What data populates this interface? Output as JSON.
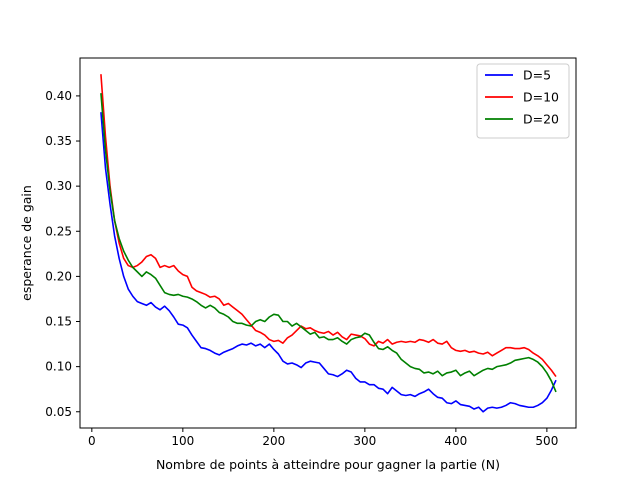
{
  "chart_data": {
    "type": "line",
    "title": "",
    "xlabel": "Nombre de points à atteindre pour gagner la partie (N)",
    "ylabel": "esperance de gain",
    "xlim": [
      -13,
      532
    ],
    "ylim": [
      0.032,
      0.442
    ],
    "xticks": [
      0,
      100,
      200,
      300,
      400,
      500
    ],
    "xtick_labels": [
      "0",
      "100",
      "200",
      "300",
      "400",
      "500"
    ],
    "yticks": [
      0.05,
      0.1,
      0.15,
      0.2,
      0.25,
      0.3,
      0.35,
      0.4
    ],
    "ytick_labels": [
      "0.05",
      "0.10",
      "0.15",
      "0.20",
      "0.25",
      "0.30",
      "0.35",
      "0.40"
    ],
    "grid": false,
    "legend_position": "top-right",
    "series": [
      {
        "name": "D=5",
        "color": "#0000ff",
        "x": [
          10,
          15,
          20,
          25,
          30,
          35,
          40,
          45,
          50,
          55,
          60,
          65,
          70,
          75,
          80,
          85,
          90,
          95,
          100,
          105,
          110,
          115,
          120,
          125,
          130,
          135,
          140,
          145,
          150,
          155,
          160,
          165,
          170,
          175,
          180,
          185,
          190,
          195,
          200,
          205,
          210,
          215,
          220,
          225,
          230,
          235,
          240,
          245,
          250,
          255,
          260,
          265,
          270,
          275,
          280,
          285,
          290,
          295,
          300,
          305,
          310,
          315,
          320,
          325,
          330,
          335,
          340,
          345,
          350,
          355,
          360,
          365,
          370,
          375,
          380,
          385,
          390,
          395,
          400,
          405,
          410,
          415,
          420,
          425,
          430,
          435,
          440,
          445,
          450,
          455,
          460,
          465,
          470,
          475,
          480,
          485,
          490,
          495,
          500,
          505,
          510
        ],
        "y": [
          0.382,
          0.32,
          0.28,
          0.245,
          0.22,
          0.2,
          0.186,
          0.178,
          0.172,
          0.17,
          0.168,
          0.171,
          0.166,
          0.163,
          0.167,
          0.162,
          0.155,
          0.147,
          0.146,
          0.143,
          0.135,
          0.128,
          0.121,
          0.12,
          0.118,
          0.115,
          0.113,
          0.116,
          0.118,
          0.12,
          0.123,
          0.125,
          0.124,
          0.126,
          0.123,
          0.125,
          0.121,
          0.125,
          0.119,
          0.114,
          0.106,
          0.103,
          0.104,
          0.102,
          0.099,
          0.104,
          0.106,
          0.105,
          0.104,
          0.098,
          0.092,
          0.091,
          0.089,
          0.092,
          0.096,
          0.094,
          0.087,
          0.083,
          0.083,
          0.08,
          0.08,
          0.076,
          0.075,
          0.07,
          0.077,
          0.073,
          0.069,
          0.068,
          0.069,
          0.067,
          0.07,
          0.072,
          0.075,
          0.07,
          0.066,
          0.065,
          0.06,
          0.059,
          0.062,
          0.058,
          0.057,
          0.056,
          0.053,
          0.055,
          0.05,
          0.054,
          0.055,
          0.054,
          0.055,
          0.057,
          0.06,
          0.059,
          0.057,
          0.056,
          0.055,
          0.055,
          0.057,
          0.06,
          0.065,
          0.074,
          0.085
        ]
      },
      {
        "name": "D=10",
        "color": "#ff0000",
        "x": [
          10,
          15,
          20,
          25,
          30,
          35,
          40,
          45,
          50,
          55,
          60,
          65,
          70,
          75,
          80,
          85,
          90,
          95,
          100,
          105,
          110,
          115,
          120,
          125,
          130,
          135,
          140,
          145,
          150,
          155,
          160,
          165,
          170,
          175,
          180,
          185,
          190,
          195,
          200,
          205,
          210,
          215,
          220,
          225,
          230,
          235,
          240,
          245,
          250,
          255,
          260,
          265,
          270,
          275,
          280,
          285,
          290,
          295,
          300,
          305,
          310,
          315,
          320,
          325,
          330,
          335,
          340,
          345,
          350,
          355,
          360,
          365,
          370,
          375,
          380,
          385,
          390,
          395,
          400,
          405,
          410,
          415,
          420,
          425,
          430,
          435,
          440,
          445,
          450,
          455,
          460,
          465,
          470,
          475,
          480,
          485,
          490,
          495,
          500,
          505,
          510
        ],
        "y": [
          0.424,
          0.355,
          0.3,
          0.262,
          0.237,
          0.22,
          0.212,
          0.21,
          0.212,
          0.216,
          0.222,
          0.224,
          0.22,
          0.21,
          0.212,
          0.21,
          0.212,
          0.206,
          0.202,
          0.2,
          0.188,
          0.184,
          0.182,
          0.18,
          0.177,
          0.178,
          0.175,
          0.168,
          0.17,
          0.166,
          0.162,
          0.158,
          0.152,
          0.146,
          0.14,
          0.138,
          0.135,
          0.13,
          0.128,
          0.129,
          0.126,
          0.132,
          0.135,
          0.14,
          0.145,
          0.142,
          0.143,
          0.14,
          0.138,
          0.137,
          0.139,
          0.135,
          0.138,
          0.133,
          0.13,
          0.136,
          0.135,
          0.134,
          0.131,
          0.125,
          0.123,
          0.128,
          0.126,
          0.13,
          0.125,
          0.127,
          0.128,
          0.127,
          0.128,
          0.127,
          0.13,
          0.129,
          0.127,
          0.13,
          0.126,
          0.125,
          0.128,
          0.121,
          0.118,
          0.117,
          0.118,
          0.116,
          0.117,
          0.115,
          0.114,
          0.116,
          0.112,
          0.115,
          0.118,
          0.121,
          0.121,
          0.12,
          0.12,
          0.121,
          0.119,
          0.115,
          0.112,
          0.108,
          0.102,
          0.096,
          0.089
        ]
      },
      {
        "name": "D=20",
        "color": "#008000",
        "x": [
          10,
          15,
          20,
          25,
          30,
          35,
          40,
          45,
          50,
          55,
          60,
          65,
          70,
          75,
          80,
          85,
          90,
          95,
          100,
          105,
          110,
          115,
          120,
          125,
          130,
          135,
          140,
          145,
          150,
          155,
          160,
          165,
          170,
          175,
          180,
          185,
          190,
          195,
          200,
          205,
          210,
          215,
          220,
          225,
          230,
          235,
          240,
          245,
          250,
          255,
          260,
          265,
          270,
          275,
          280,
          285,
          290,
          295,
          300,
          305,
          310,
          315,
          320,
          325,
          330,
          335,
          340,
          345,
          350,
          355,
          360,
          365,
          370,
          375,
          380,
          385,
          390,
          395,
          400,
          405,
          410,
          415,
          420,
          425,
          430,
          435,
          440,
          445,
          450,
          455,
          460,
          465,
          470,
          475,
          480,
          485,
          490,
          495,
          500,
          505,
          510
        ],
        "y": [
          0.403,
          0.34,
          0.295,
          0.262,
          0.242,
          0.228,
          0.218,
          0.21,
          0.205,
          0.2,
          0.205,
          0.202,
          0.198,
          0.19,
          0.182,
          0.18,
          0.179,
          0.18,
          0.178,
          0.177,
          0.175,
          0.172,
          0.168,
          0.165,
          0.168,
          0.165,
          0.16,
          0.158,
          0.155,
          0.15,
          0.148,
          0.148,
          0.146,
          0.145,
          0.15,
          0.152,
          0.15,
          0.155,
          0.158,
          0.157,
          0.15,
          0.15,
          0.145,
          0.148,
          0.144,
          0.14,
          0.136,
          0.138,
          0.132,
          0.133,
          0.13,
          0.13,
          0.132,
          0.128,
          0.125,
          0.13,
          0.132,
          0.133,
          0.137,
          0.135,
          0.127,
          0.12,
          0.119,
          0.122,
          0.118,
          0.115,
          0.108,
          0.104,
          0.1,
          0.098,
          0.097,
          0.093,
          0.094,
          0.092,
          0.095,
          0.09,
          0.093,
          0.094,
          0.096,
          0.09,
          0.093,
          0.095,
          0.09,
          0.093,
          0.096,
          0.098,
          0.097,
          0.1,
          0.101,
          0.102,
          0.104,
          0.107,
          0.108,
          0.109,
          0.11,
          0.108,
          0.105,
          0.1,
          0.093,
          0.084,
          0.072
        ]
      }
    ]
  }
}
